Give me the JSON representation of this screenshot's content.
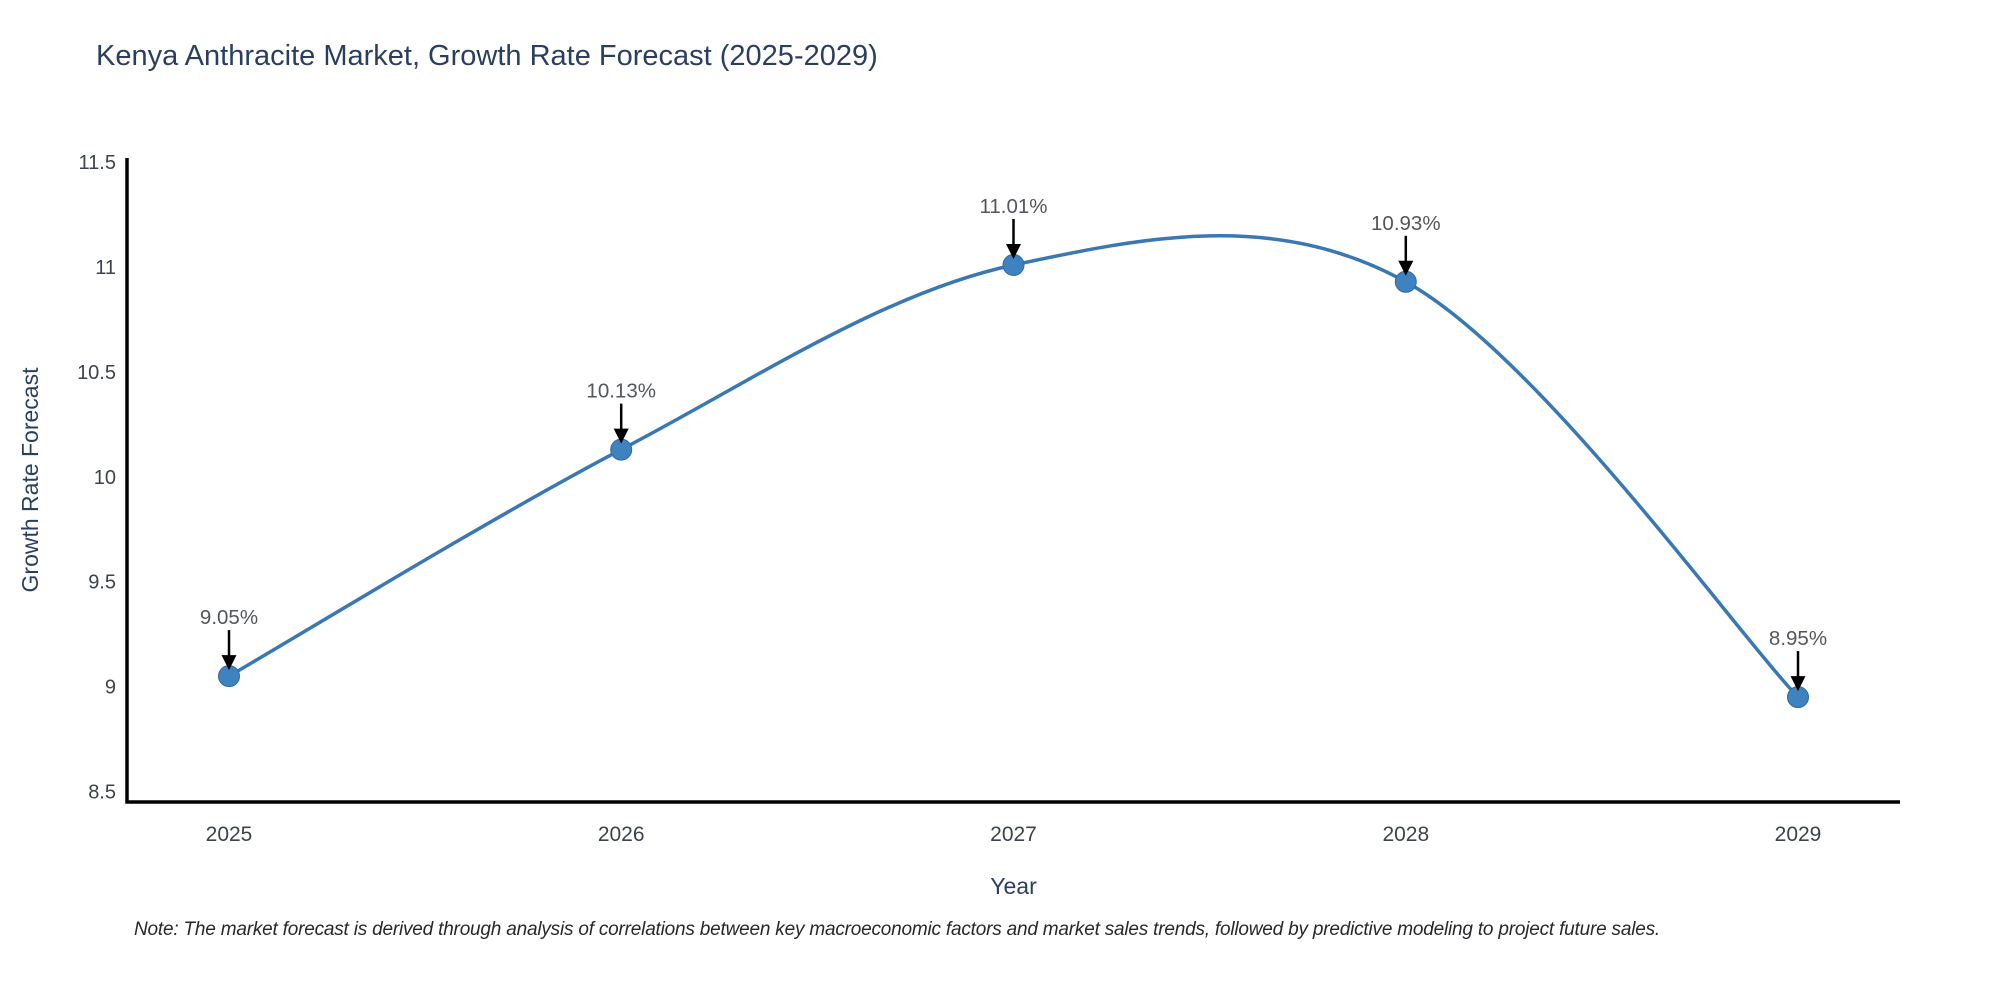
{
  "title": "Kenya Anthracite Market, Growth Rate Forecast (2025-2029)",
  "note": "Note: The market forecast is derived through analysis of correlations between key macroeconomic factors and market sales trends, followed by predictive modeling to project future sales.",
  "chart_data": {
    "type": "line",
    "line_shape": "spline",
    "title": "Kenya Anthracite Market, Growth Rate Forecast (2025-2029)",
    "xlabel": "Year",
    "ylabel": "Growth Rate Forecast",
    "x": [
      2025,
      2026,
      2027,
      2028,
      2029
    ],
    "y": [
      9.05,
      10.13,
      11.01,
      10.93,
      8.95
    ],
    "point_labels": [
      "9.05%",
      "10.13%",
      "11.01%",
      "10.93%",
      "8.95%"
    ],
    "x_tick_labels": [
      "2025",
      "2026",
      "2027",
      "2028",
      "2029"
    ],
    "y_tick_values": [
      8.5,
      9,
      9.5,
      10,
      10.5,
      11,
      11.5
    ],
    "y_tick_labels": [
      "8.5",
      "9",
      "9.5",
      "10",
      "10.5",
      "11",
      "11.5"
    ],
    "x_range": [
      2024.74,
      2029.26
    ],
    "y_range": [
      8.45,
      11.52
    ],
    "grid": false,
    "legend_position": "none",
    "markers": true,
    "annotations_have_arrows": true,
    "colors": {
      "line": "#3a78b4",
      "marker_fill": "#3f82c0",
      "marker_edge": "#2d6aa3",
      "axis_line": "#000000",
      "tick_label": "#3c434d",
      "axis_title": "#2a3f5f",
      "title": "#2a3f5f",
      "annotation_text": "#53565c",
      "annotation_arrow": "#000000",
      "note_text": "#26282b",
      "background": "#ffffff"
    }
  }
}
